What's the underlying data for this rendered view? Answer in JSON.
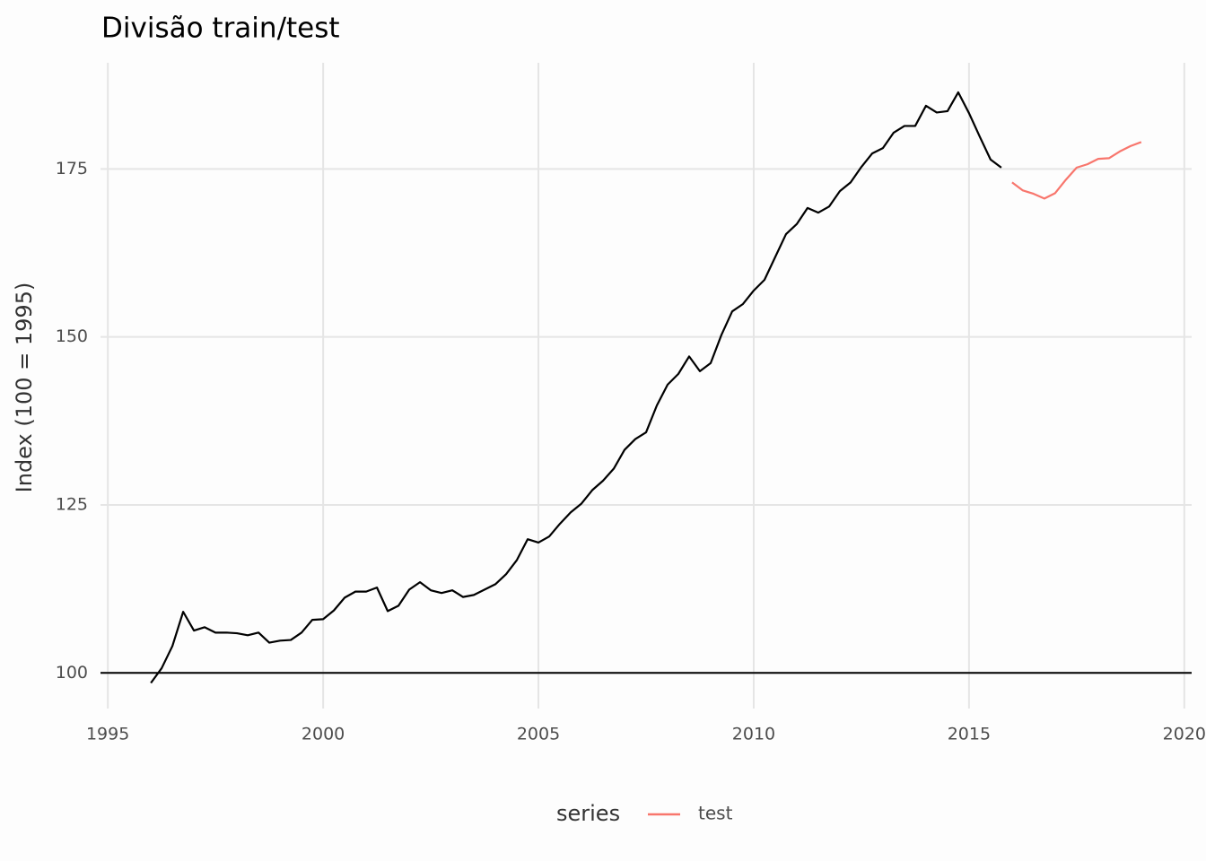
{
  "chart_data": {
    "type": "line",
    "title": "Divisão train/test",
    "y_label": "Index (100 = 1995)",
    "legend_title": "series",
    "legend_position": "bottom",
    "grid": true,
    "hline": 100,
    "xlim": [
      1994.83,
      2020.17
    ],
    "ylim": [
      94.7,
      190.8
    ],
    "xticks": [
      1995,
      2000,
      2005,
      2010,
      2015,
      2020
    ],
    "yticks": [
      100,
      125,
      150,
      175
    ],
    "series": [
      {
        "color": "#000000",
        "x": [
          1996,
          1996.25,
          1996.5,
          1996.75,
          1997,
          1997.25,
          1997.5,
          1997.75,
          1998,
          1998.25,
          1998.5,
          1998.75,
          1999,
          1999.25,
          1999.5,
          1999.75,
          2000,
          2000.25,
          2000.5,
          2000.75,
          2001,
          2001.25,
          2001.5,
          2001.75,
          2002,
          2002.25,
          2002.5,
          2002.75,
          2003,
          2003.25,
          2003.5,
          2003.75,
          2004,
          2004.25,
          2004.5,
          2004.75,
          2005,
          2005.25,
          2005.5,
          2005.75,
          2006,
          2006.25,
          2006.5,
          2006.75,
          2007,
          2007.25,
          2007.5,
          2007.75,
          2008,
          2008.25,
          2008.5,
          2008.75,
          2009,
          2009.25,
          2009.5,
          2009.75,
          2010,
          2010.25,
          2010.5,
          2010.75,
          2011,
          2011.25,
          2011.5,
          2011.75,
          2012,
          2012.25,
          2012.5,
          2012.75,
          2013,
          2013.25,
          2013.5,
          2013.75,
          2014,
          2014.25,
          2014.5,
          2014.75,
          2015,
          2015.25,
          2015.5,
          2015.75
        ],
        "values": [
          98.5,
          100.7,
          104.0,
          109.1,
          106.3,
          106.8,
          106.0,
          106.0,
          105.9,
          105.6,
          106.0,
          104.5,
          104.8,
          104.9,
          106.0,
          107.9,
          108.0,
          109.3,
          111.2,
          112.1,
          112.1,
          112.7,
          109.2,
          110.0,
          112.4,
          113.5,
          112.3,
          111.9,
          112.3,
          111.3,
          111.6,
          112.4,
          113.2,
          114.7,
          116.8,
          119.9,
          119.4,
          120.3,
          122.2,
          123.9,
          125.2,
          127.2,
          128.6,
          130.4,
          133.2,
          134.8,
          135.8,
          139.8,
          142.9,
          144.5,
          147.1,
          144.9,
          146.1,
          150.3,
          153.8,
          154.9,
          156.9,
          158.5,
          161.9,
          165.3,
          166.8,
          169.2,
          168.5,
          169.4,
          171.7,
          173.0,
          175.3,
          177.3,
          178.1,
          180.4,
          181.4,
          181.4,
          184.4,
          183.4,
          183.6,
          186.4,
          183.3,
          179.8,
          176.4,
          175.2
        ]
      },
      {
        "name": "test",
        "color": "#F8766D",
        "x": [
          2016,
          2016.25,
          2016.5,
          2016.75,
          2017,
          2017.25,
          2017.5,
          2017.75,
          2018,
          2018.25,
          2018.5,
          2018.75,
          2019
        ],
        "values": [
          173.0,
          171.8,
          171.3,
          170.6,
          171.4,
          173.4,
          175.2,
          175.7,
          176.5,
          176.6,
          177.6,
          178.4,
          179.0
        ]
      }
    ]
  }
}
